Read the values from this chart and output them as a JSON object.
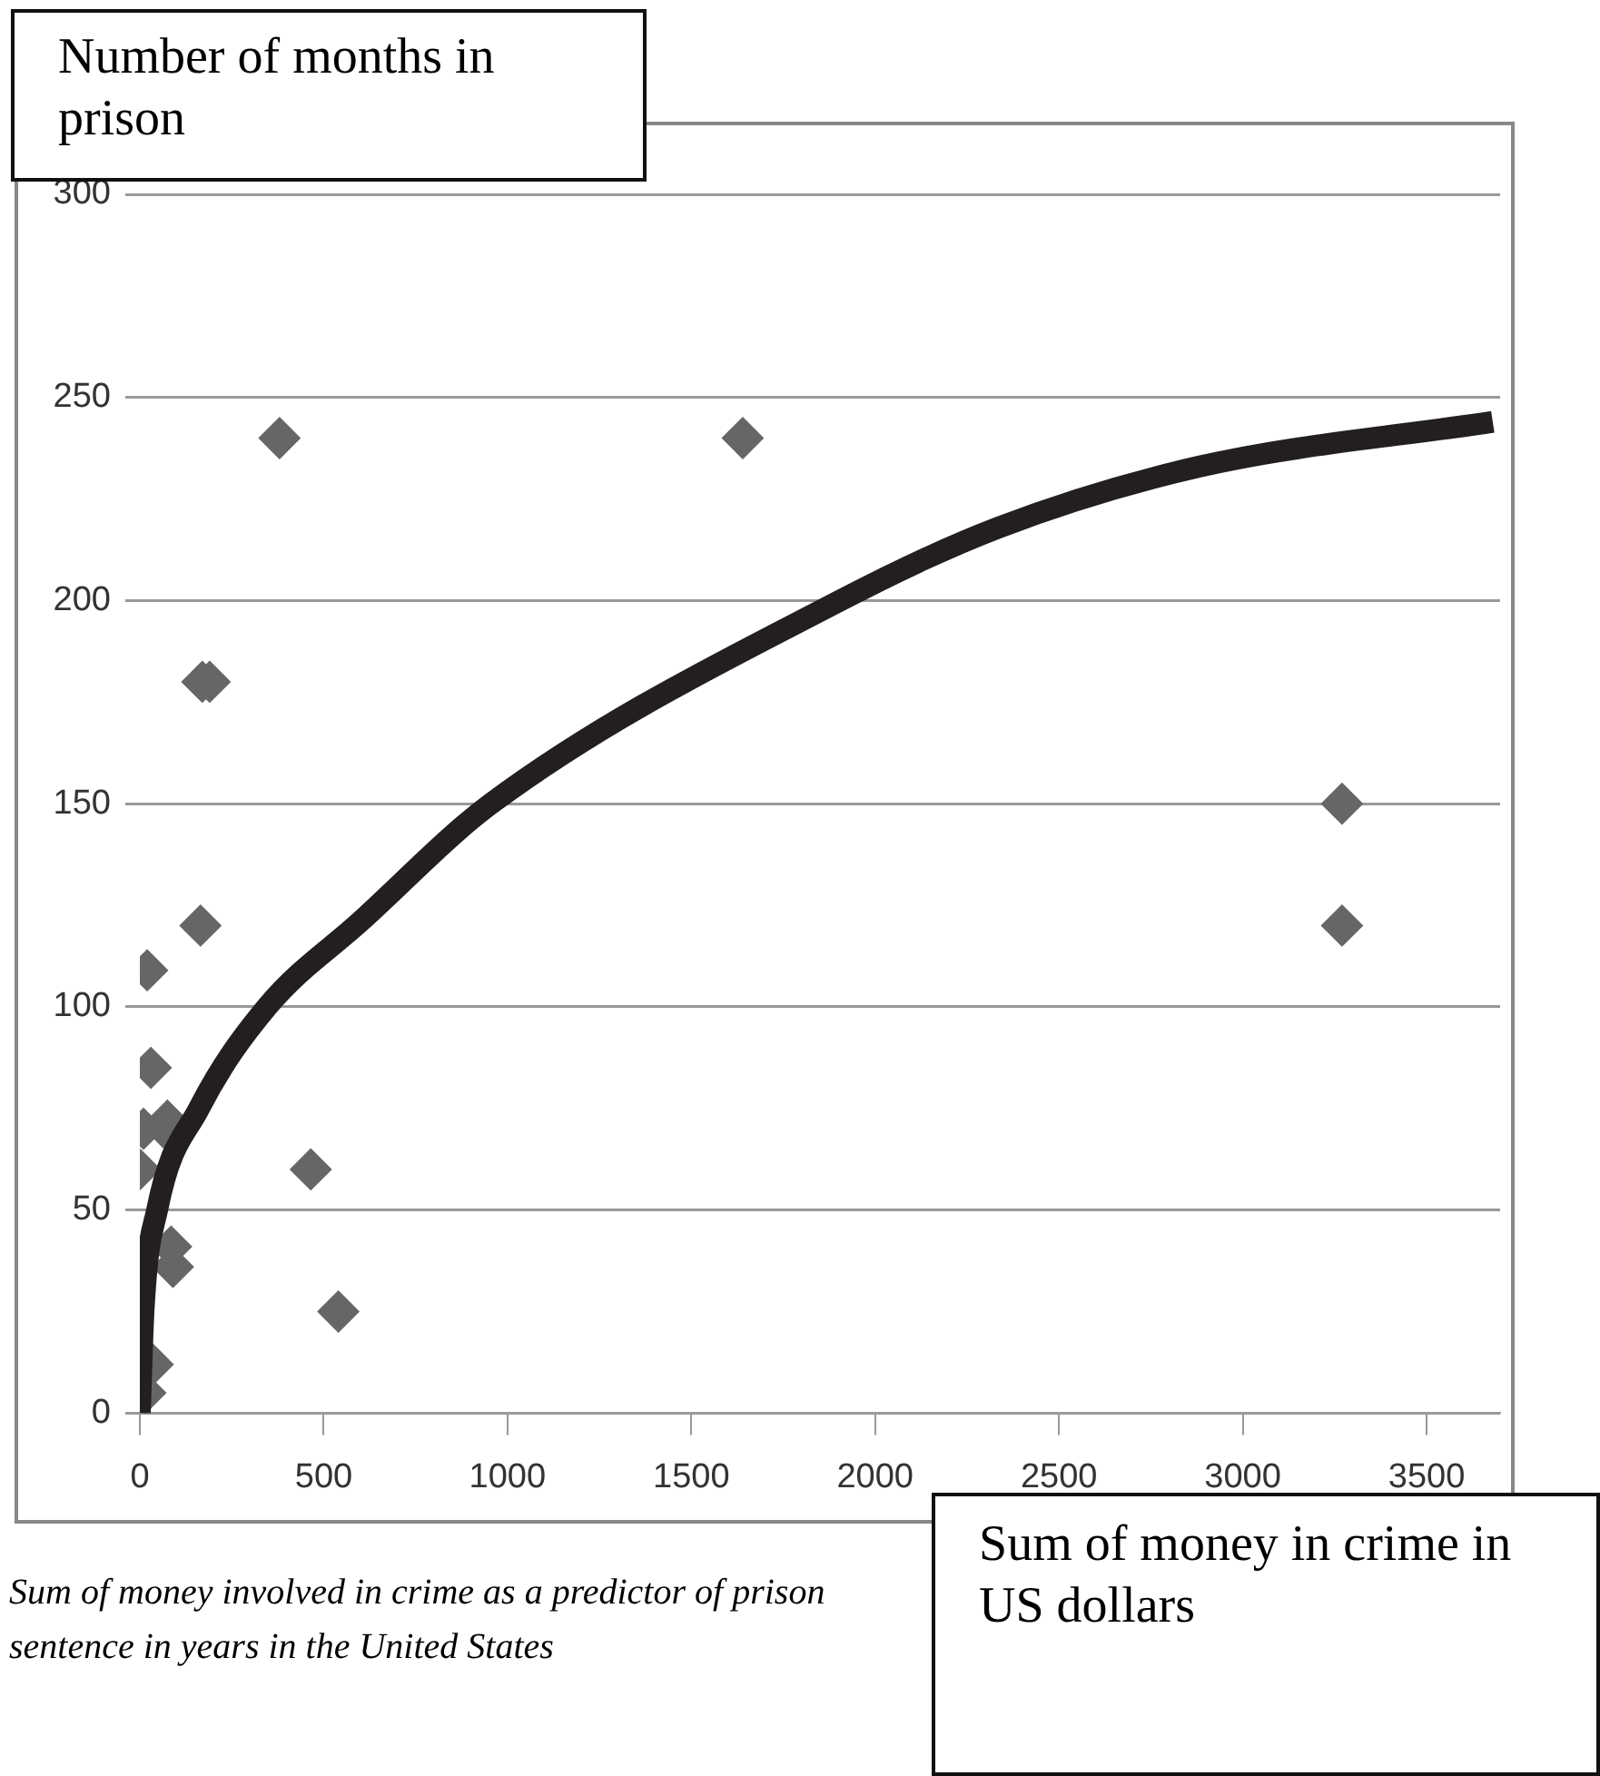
{
  "chart_data": {
    "type": "scatter",
    "xlabel": "Sum of money in crime in US dollars",
    "ylabel": "Number of months in prison",
    "annotations": [
      "Sum of money involved in crime as a predictor of prison sentence in years in the United States"
    ],
    "series": [
      {
        "color": "#666666",
        "marker": "diamond",
        "x": [
          380,
          1640,
          3270,
          3270,
          170,
          190,
          165,
          20,
          30,
          10,
          75,
          90,
          0,
          465,
          85,
          90,
          540,
          35,
          15
        ],
        "values": [
          240,
          240,
          150,
          120,
          180,
          180,
          120,
          109,
          85,
          70,
          72,
          68,
          60,
          60,
          41,
          36,
          25,
          12,
          5
        ]
      },
      {
        "type": "line",
        "color": "#231f20",
        "marker": "none",
        "line_style": "solid",
        "x": [
          0,
          10,
          47,
          161,
          346,
          600,
          955,
          1905,
          2336,
          2883,
          3680
        ],
        "values": [
          0,
          25,
          50,
          75,
          100,
          121,
          150,
          200,
          218,
          233,
          244
        ]
      }
    ],
    "xlim": [
      0,
      3700
    ],
    "xticks": [
      0,
      500,
      1000,
      1500,
      2000,
      2500,
      3000,
      3500
    ],
    "ylim": [
      0,
      300
    ],
    "yticks": [
      0,
      50,
      100,
      150,
      200,
      250,
      300
    ],
    "grid": "y",
    "legend": false
  }
}
